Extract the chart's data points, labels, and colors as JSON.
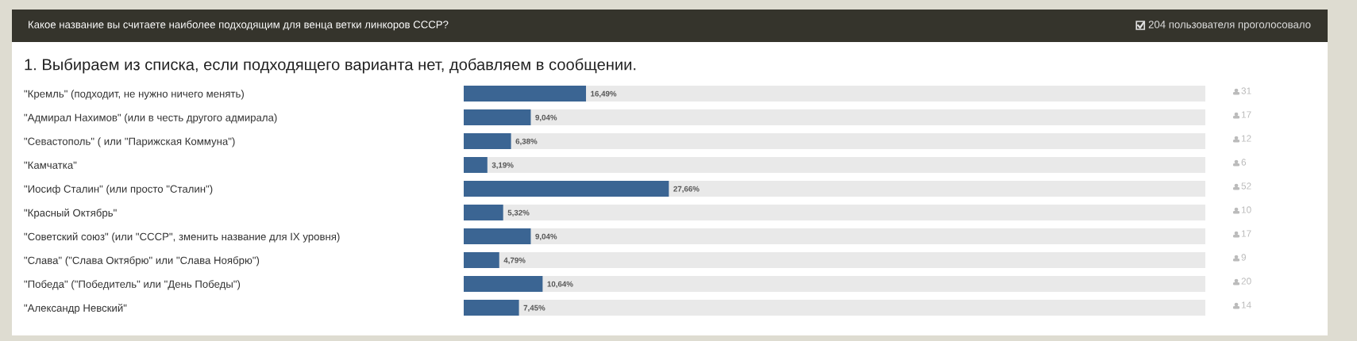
{
  "chart_data": {
    "type": "bar",
    "orientation": "horizontal",
    "title": "Какое название вы считаете наиболее подходящим для венца ветки линкоров СССР?",
    "subtitle": "1. Выбираем из списка, если подходящего варианта нет, добавляем в сообщении.",
    "categories": [
      "\"Кремль\" (подходит, не нужно ничего менять)",
      "\"Адмирал Нахимов\" (или в честь другого адмирала)",
      "\"Севастополь\" ( или \"Парижская Коммуна\")",
      "\"Камчатка\"",
      "\"Иосиф Сталин\" (или просто \"Сталин\")",
      "\"Красный Октябрь\"",
      "\"Советский союз\" (или \"СССР\", зменить название для IX уровня)",
      "\"Слава\" (\"Слава Октябрю\" или \"Слава Ноябрю\")",
      "\"Победа\" (\"Победитель\" или \"День Победы\")",
      "\"Александр Невский\""
    ],
    "values": [
      16.49,
      9.04,
      6.38,
      3.19,
      27.66,
      5.32,
      9.04,
      4.79,
      10.64,
      7.45
    ],
    "value_labels": [
      "16,49%",
      "9,04%",
      "6,38%",
      "3,19%",
      "27,66%",
      "5,32%",
      "9,04%",
      "4,79%",
      "10,64%",
      "7,45%"
    ],
    "color": "#3b6593",
    "xlim": [
      0,
      100
    ],
    "tick_labels": "y",
    "annotations": [
      "204 пользователя проголосовало",
      "31",
      "17",
      "12",
      "6",
      "52",
      "10",
      "17",
      "9",
      "20",
      "14"
    ]
  }
}
